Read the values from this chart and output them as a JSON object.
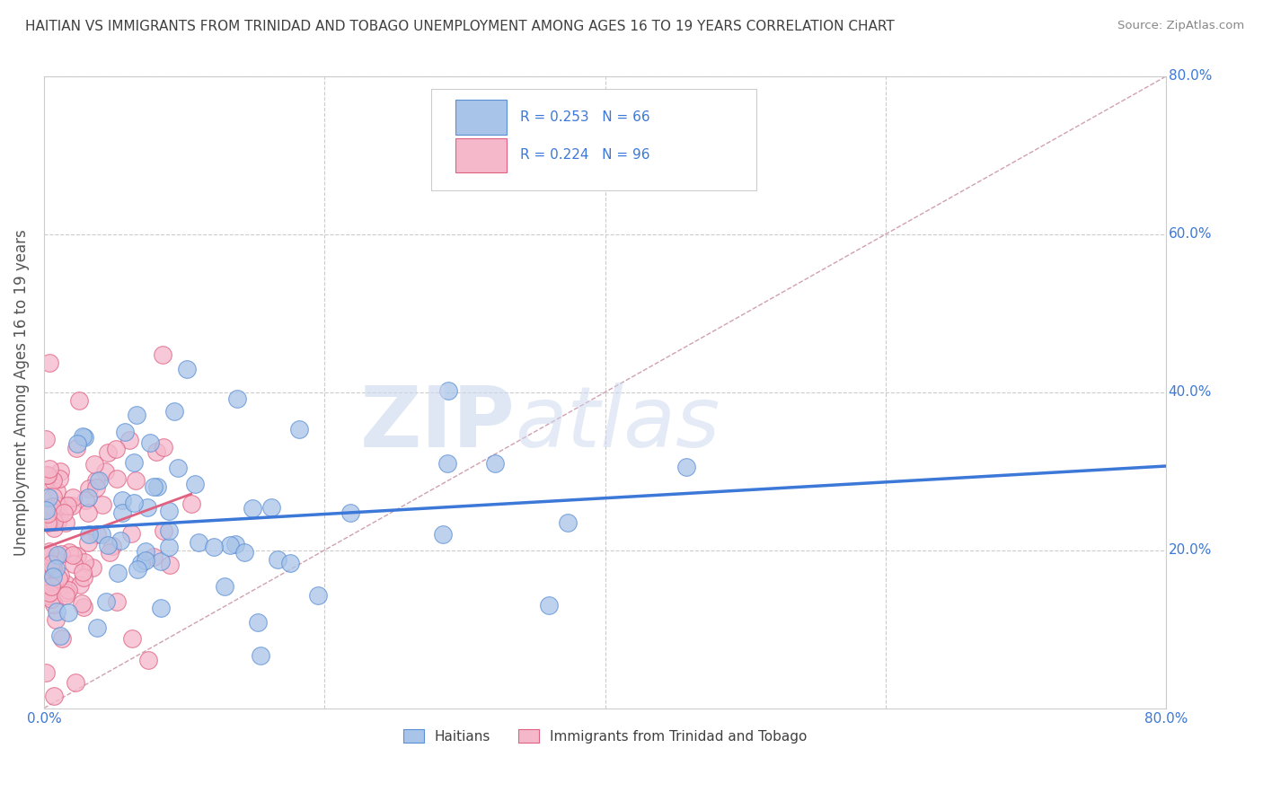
{
  "title": "HAITIAN VS IMMIGRANTS FROM TRINIDAD AND TOBAGO UNEMPLOYMENT AMONG AGES 16 TO 19 YEARS CORRELATION CHART",
  "source": "Source: ZipAtlas.com",
  "ylabel": "Unemployment Among Ages 16 to 19 years",
  "xlim": [
    0.0,
    0.8
  ],
  "ylim": [
    0.0,
    0.8
  ],
  "watermark_zip": "ZIP",
  "watermark_atlas": "atlas",
  "series1_label": "Haitians",
  "series1_color": "#a8c4e8",
  "series1_edge_color": "#5b8fd6",
  "series1_R": 0.253,
  "series1_N": 66,
  "series1_trend_color": "#3c78d8",
  "series2_label": "Immigrants from Trinidad and Tobago",
  "series2_color": "#f5b8cb",
  "series2_edge_color": "#e06080",
  "series2_R": 0.224,
  "series2_N": 96,
  "series2_trend_color": "#e06080",
  "background_color": "#ffffff",
  "grid_color": "#cccccc",
  "title_color": "#404040",
  "axis_color": "#cccccc",
  "diagonal_color": "#d0a0b0",
  "legend_box_color": "#eeeeee"
}
